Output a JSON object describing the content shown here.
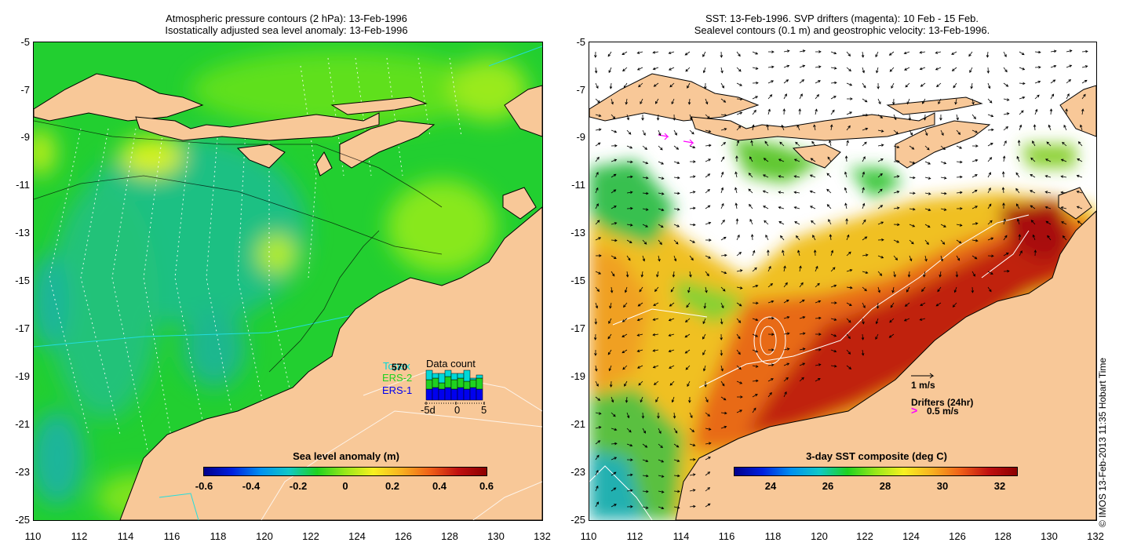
{
  "left_panel": {
    "title_line1": "Atmospheric pressure contours (2 hPa): 13-Feb-1996",
    "title_line2": "Isostatically adjusted sea level anomaly: 13-Feb-1996",
    "colorbar": {
      "title": "Sea level anomaly (m)",
      "ticks": [
        "-0.6",
        "-0.4",
        "-0.2",
        "0",
        "0.2",
        "0.4",
        "0.6"
      ]
    },
    "data_count": {
      "title": "Data count",
      "count": "570",
      "series_labels": [
        "Topex",
        "ERS-2",
        "ERS-1"
      ],
      "series_colors": [
        "#00d8d8",
        "#1fd21f",
        "#0000ee"
      ],
      "axis_ticks": [
        "-5d",
        "0",
        "5"
      ]
    }
  },
  "right_panel": {
    "title_line1": "SST: 13-Feb-1996. SVP drifters (magenta): 10 Feb - 15 Feb.",
    "title_line2": "Sealevel contours (0.1 m) and geostrophic velocity: 13-Feb-1996.",
    "colorbar": {
      "title": "3-day SST composite (deg C)",
      "ticks": [
        "24",
        "26",
        "28",
        "30",
        "32"
      ]
    },
    "velocity_scale": "1 m/s",
    "drifters_label": "Drifters (24hr)",
    "drifters_scale": "0.5 m/s"
  },
  "axes": {
    "y_ticks": [
      "-5",
      "-7",
      "-9",
      "-11",
      "-13",
      "-15",
      "-17",
      "-19",
      "-21",
      "-23",
      "-25"
    ],
    "x_ticks": [
      "110",
      "112",
      "114",
      "116",
      "118",
      "120",
      "122",
      "124",
      "126",
      "128",
      "130",
      "132"
    ]
  },
  "colors": {
    "land": "#f8c898",
    "ocean_base": "#1fd21f",
    "magenta": "#ff00ff"
  },
  "copyright": "© IMOS 13-Feb-2013 11:35 Hobart Time"
}
